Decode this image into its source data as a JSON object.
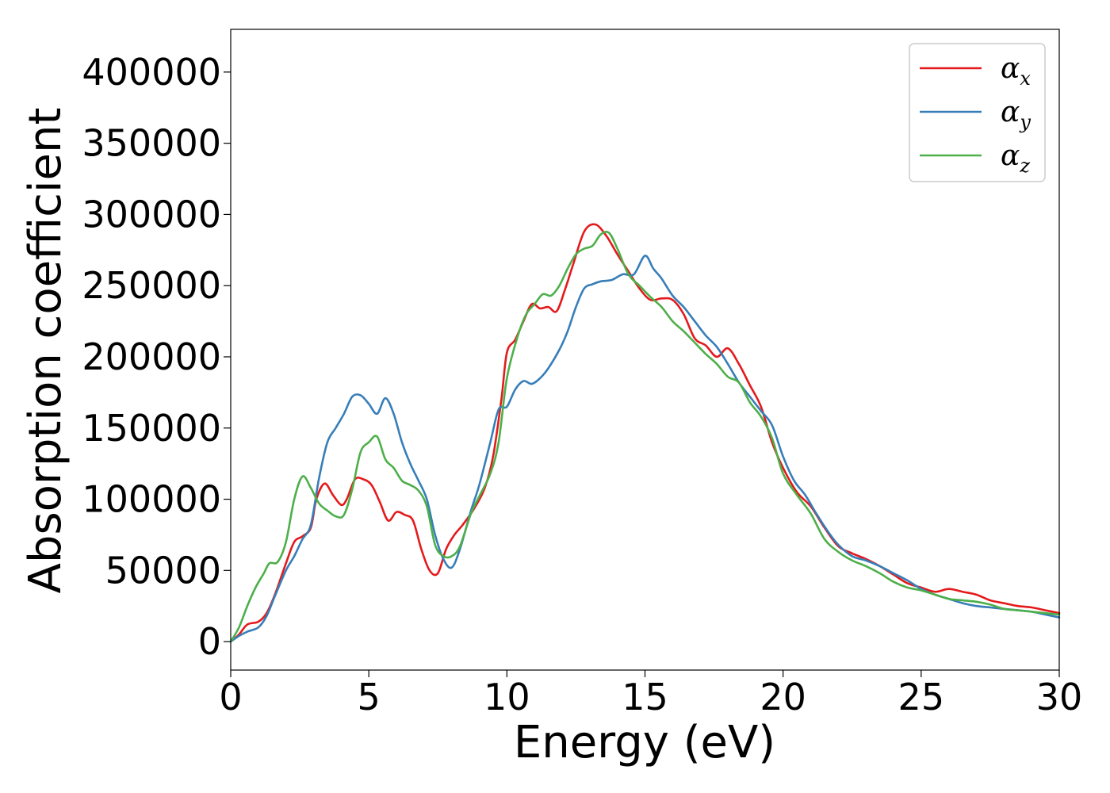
{
  "chart_data": {
    "type": "line",
    "title": "",
    "xlabel": "Energy (eV)",
    "ylabel": "Absorption coefficient",
    "xlim": [
      0,
      30
    ],
    "ylim": [
      -20000,
      430000
    ],
    "xticks": [
      0,
      5,
      10,
      15,
      20,
      25,
      30
    ],
    "yticks": [
      0,
      50000,
      100000,
      150000,
      200000,
      250000,
      300000,
      350000,
      400000
    ],
    "grid": false,
    "legend_position": "top-right",
    "series": [
      {
        "name": "α",
        "subscript": "x",
        "color": "#e41a1c",
        "points": [
          [
            0,
            0
          ],
          [
            0.3,
            5000
          ],
          [
            0.6,
            12000
          ],
          [
            1.0,
            14000
          ],
          [
            1.3,
            20000
          ],
          [
            1.6,
            33000
          ],
          [
            2.0,
            55000
          ],
          [
            2.3,
            70000
          ],
          [
            2.6,
            74000
          ],
          [
            2.9,
            80000
          ],
          [
            3.1,
            100000
          ],
          [
            3.4,
            111000
          ],
          [
            3.7,
            103000
          ],
          [
            4.0,
            96000
          ],
          [
            4.2,
            100000
          ],
          [
            4.5,
            114000
          ],
          [
            4.8,
            114000
          ],
          [
            5.1,
            110000
          ],
          [
            5.4,
            98000
          ],
          [
            5.7,
            85000
          ],
          [
            6.0,
            91000
          ],
          [
            6.3,
            89000
          ],
          [
            6.6,
            85000
          ],
          [
            6.9,
            65000
          ],
          [
            7.2,
            50000
          ],
          [
            7.5,
            48000
          ],
          [
            7.8,
            65000
          ],
          [
            8.1,
            75000
          ],
          [
            8.4,
            82000
          ],
          [
            8.8,
            93000
          ],
          [
            9.2,
            108000
          ],
          [
            9.5,
            130000
          ],
          [
            9.8,
            170000
          ],
          [
            10.0,
            203000
          ],
          [
            10.3,
            212000
          ],
          [
            10.6,
            225000
          ],
          [
            10.9,
            237000
          ],
          [
            11.2,
            234000
          ],
          [
            11.5,
            235000
          ],
          [
            11.8,
            232000
          ],
          [
            12.1,
            247000
          ],
          [
            12.4,
            265000
          ],
          [
            12.8,
            288000
          ],
          [
            13.2,
            293000
          ],
          [
            13.6,
            285000
          ],
          [
            14.0,
            272000
          ],
          [
            14.4,
            260000
          ],
          [
            14.8,
            248000
          ],
          [
            15.2,
            240000
          ],
          [
            15.6,
            241000
          ],
          [
            16.0,
            240000
          ],
          [
            16.4,
            230000
          ],
          [
            16.8,
            213000
          ],
          [
            17.2,
            208000
          ],
          [
            17.6,
            200000
          ],
          [
            18.0,
            206000
          ],
          [
            18.4,
            195000
          ],
          [
            18.8,
            180000
          ],
          [
            19.2,
            165000
          ],
          [
            19.6,
            140000
          ],
          [
            20.0,
            122000
          ],
          [
            20.5,
            105000
          ],
          [
            21.0,
            95000
          ],
          [
            21.5,
            80000
          ],
          [
            22.0,
            67000
          ],
          [
            22.5,
            62000
          ],
          [
            23.0,
            58000
          ],
          [
            23.5,
            53000
          ],
          [
            24.0,
            47000
          ],
          [
            24.5,
            41000
          ],
          [
            25.0,
            38000
          ],
          [
            25.5,
            35000
          ],
          [
            26.0,
            37000
          ],
          [
            26.5,
            35000
          ],
          [
            27.0,
            33000
          ],
          [
            27.5,
            29000
          ],
          [
            28.0,
            27000
          ],
          [
            28.5,
            25000
          ],
          [
            29.0,
            24000
          ],
          [
            29.5,
            22000
          ],
          [
            30.0,
            20000
          ]
        ]
      },
      {
        "name": "α",
        "subscript": "y",
        "color": "#377eb8",
        "points": [
          [
            0,
            0
          ],
          [
            0.3,
            4000
          ],
          [
            0.6,
            7000
          ],
          [
            1.0,
            10000
          ],
          [
            1.3,
            18000
          ],
          [
            1.6,
            32000
          ],
          [
            2.0,
            50000
          ],
          [
            2.3,
            60000
          ],
          [
            2.6,
            72000
          ],
          [
            2.9,
            82000
          ],
          [
            3.2,
            115000
          ],
          [
            3.5,
            140000
          ],
          [
            3.8,
            150000
          ],
          [
            4.1,
            160000
          ],
          [
            4.4,
            172000
          ],
          [
            4.7,
            173000
          ],
          [
            5.0,
            167000
          ],
          [
            5.3,
            160000
          ],
          [
            5.6,
            171000
          ],
          [
            5.9,
            160000
          ],
          [
            6.2,
            140000
          ],
          [
            6.5,
            125000
          ],
          [
            6.8,
            113000
          ],
          [
            7.1,
            100000
          ],
          [
            7.4,
            75000
          ],
          [
            7.7,
            58000
          ],
          [
            8.0,
            52000
          ],
          [
            8.3,
            65000
          ],
          [
            8.7,
            92000
          ],
          [
            9.0,
            110000
          ],
          [
            9.4,
            140000
          ],
          [
            9.7,
            163000
          ],
          [
            10.0,
            165000
          ],
          [
            10.3,
            177000
          ],
          [
            10.6,
            183000
          ],
          [
            10.9,
            181000
          ],
          [
            11.2,
            185000
          ],
          [
            11.5,
            192000
          ],
          [
            11.9,
            205000
          ],
          [
            12.2,
            218000
          ],
          [
            12.5,
            235000
          ],
          [
            12.8,
            248000
          ],
          [
            13.1,
            251000
          ],
          [
            13.4,
            253000
          ],
          [
            13.8,
            254000
          ],
          [
            14.2,
            258000
          ],
          [
            14.6,
            258000
          ],
          [
            15.0,
            271000
          ],
          [
            15.3,
            262000
          ],
          [
            15.6,
            255000
          ],
          [
            16.0,
            243000
          ],
          [
            16.4,
            235000
          ],
          [
            16.8,
            225000
          ],
          [
            17.2,
            215000
          ],
          [
            17.6,
            207000
          ],
          [
            18.0,
            195000
          ],
          [
            18.4,
            182000
          ],
          [
            18.8,
            172000
          ],
          [
            19.2,
            162000
          ],
          [
            19.6,
            152000
          ],
          [
            20.0,
            130000
          ],
          [
            20.4,
            113000
          ],
          [
            20.8,
            103000
          ],
          [
            21.2,
            90000
          ],
          [
            21.6,
            78000
          ],
          [
            22.0,
            68000
          ],
          [
            22.5,
            60000
          ],
          [
            23.0,
            57000
          ],
          [
            23.5,
            53000
          ],
          [
            24.0,
            48000
          ],
          [
            24.5,
            43000
          ],
          [
            25.0,
            37000
          ],
          [
            25.5,
            33000
          ],
          [
            26.0,
            30000
          ],
          [
            26.5,
            27000
          ],
          [
            27.0,
            25000
          ],
          [
            27.5,
            24000
          ],
          [
            28.0,
            23000
          ],
          [
            28.5,
            22000
          ],
          [
            29.0,
            21000
          ],
          [
            29.5,
            19000
          ],
          [
            30.0,
            17000
          ]
        ]
      },
      {
        "name": "α",
        "subscript": "z",
        "color": "#4daf4a",
        "points": [
          [
            0,
            0
          ],
          [
            0.3,
            10000
          ],
          [
            0.6,
            25000
          ],
          [
            0.9,
            38000
          ],
          [
            1.2,
            48000
          ],
          [
            1.4,
            55000
          ],
          [
            1.7,
            56000
          ],
          [
            2.0,
            70000
          ],
          [
            2.3,
            100000
          ],
          [
            2.6,
            116000
          ],
          [
            2.9,
            108000
          ],
          [
            3.2,
            97000
          ],
          [
            3.5,
            92000
          ],
          [
            3.8,
            88000
          ],
          [
            4.1,
            89000
          ],
          [
            4.4,
            107000
          ],
          [
            4.7,
            133000
          ],
          [
            5.0,
            140000
          ],
          [
            5.3,
            144000
          ],
          [
            5.6,
            128000
          ],
          [
            5.9,
            122000
          ],
          [
            6.2,
            113000
          ],
          [
            6.5,
            110000
          ],
          [
            6.8,
            106000
          ],
          [
            7.1,
            95000
          ],
          [
            7.4,
            68000
          ],
          [
            7.7,
            60000
          ],
          [
            8.0,
            60000
          ],
          [
            8.3,
            67000
          ],
          [
            8.7,
            90000
          ],
          [
            9.0,
            102000
          ],
          [
            9.4,
            118000
          ],
          [
            9.7,
            140000
          ],
          [
            10.0,
            185000
          ],
          [
            10.4,
            215000
          ],
          [
            10.7,
            230000
          ],
          [
            11.0,
            237000
          ],
          [
            11.3,
            244000
          ],
          [
            11.6,
            243000
          ],
          [
            11.9,
            250000
          ],
          [
            12.2,
            262000
          ],
          [
            12.5,
            272000
          ],
          [
            12.8,
            276000
          ],
          [
            13.1,
            278000
          ],
          [
            13.4,
            286000
          ],
          [
            13.7,
            287000
          ],
          [
            14.0,
            276000
          ],
          [
            14.4,
            258000
          ],
          [
            14.8,
            250000
          ],
          [
            15.2,
            242000
          ],
          [
            15.6,
            235000
          ],
          [
            16.0,
            225000
          ],
          [
            16.4,
            218000
          ],
          [
            16.8,
            210000
          ],
          [
            17.2,
            202000
          ],
          [
            17.6,
            195000
          ],
          [
            18.0,
            186000
          ],
          [
            18.4,
            182000
          ],
          [
            18.8,
            168000
          ],
          [
            19.2,
            158000
          ],
          [
            19.6,
            143000
          ],
          [
            20.0,
            118000
          ],
          [
            20.5,
            103000
          ],
          [
            21.0,
            90000
          ],
          [
            21.5,
            72000
          ],
          [
            22.0,
            63000
          ],
          [
            22.5,
            57000
          ],
          [
            23.0,
            53000
          ],
          [
            23.5,
            48000
          ],
          [
            24.0,
            42000
          ],
          [
            24.5,
            38000
          ],
          [
            25.0,
            36000
          ],
          [
            25.5,
            33000
          ],
          [
            26.0,
            30000
          ],
          [
            26.5,
            29000
          ],
          [
            27.0,
            28000
          ],
          [
            27.5,
            26000
          ],
          [
            28.0,
            23000
          ],
          [
            28.5,
            22000
          ],
          [
            29.0,
            21000
          ],
          [
            29.5,
            20000
          ],
          [
            30.0,
            19000
          ]
        ]
      }
    ]
  }
}
